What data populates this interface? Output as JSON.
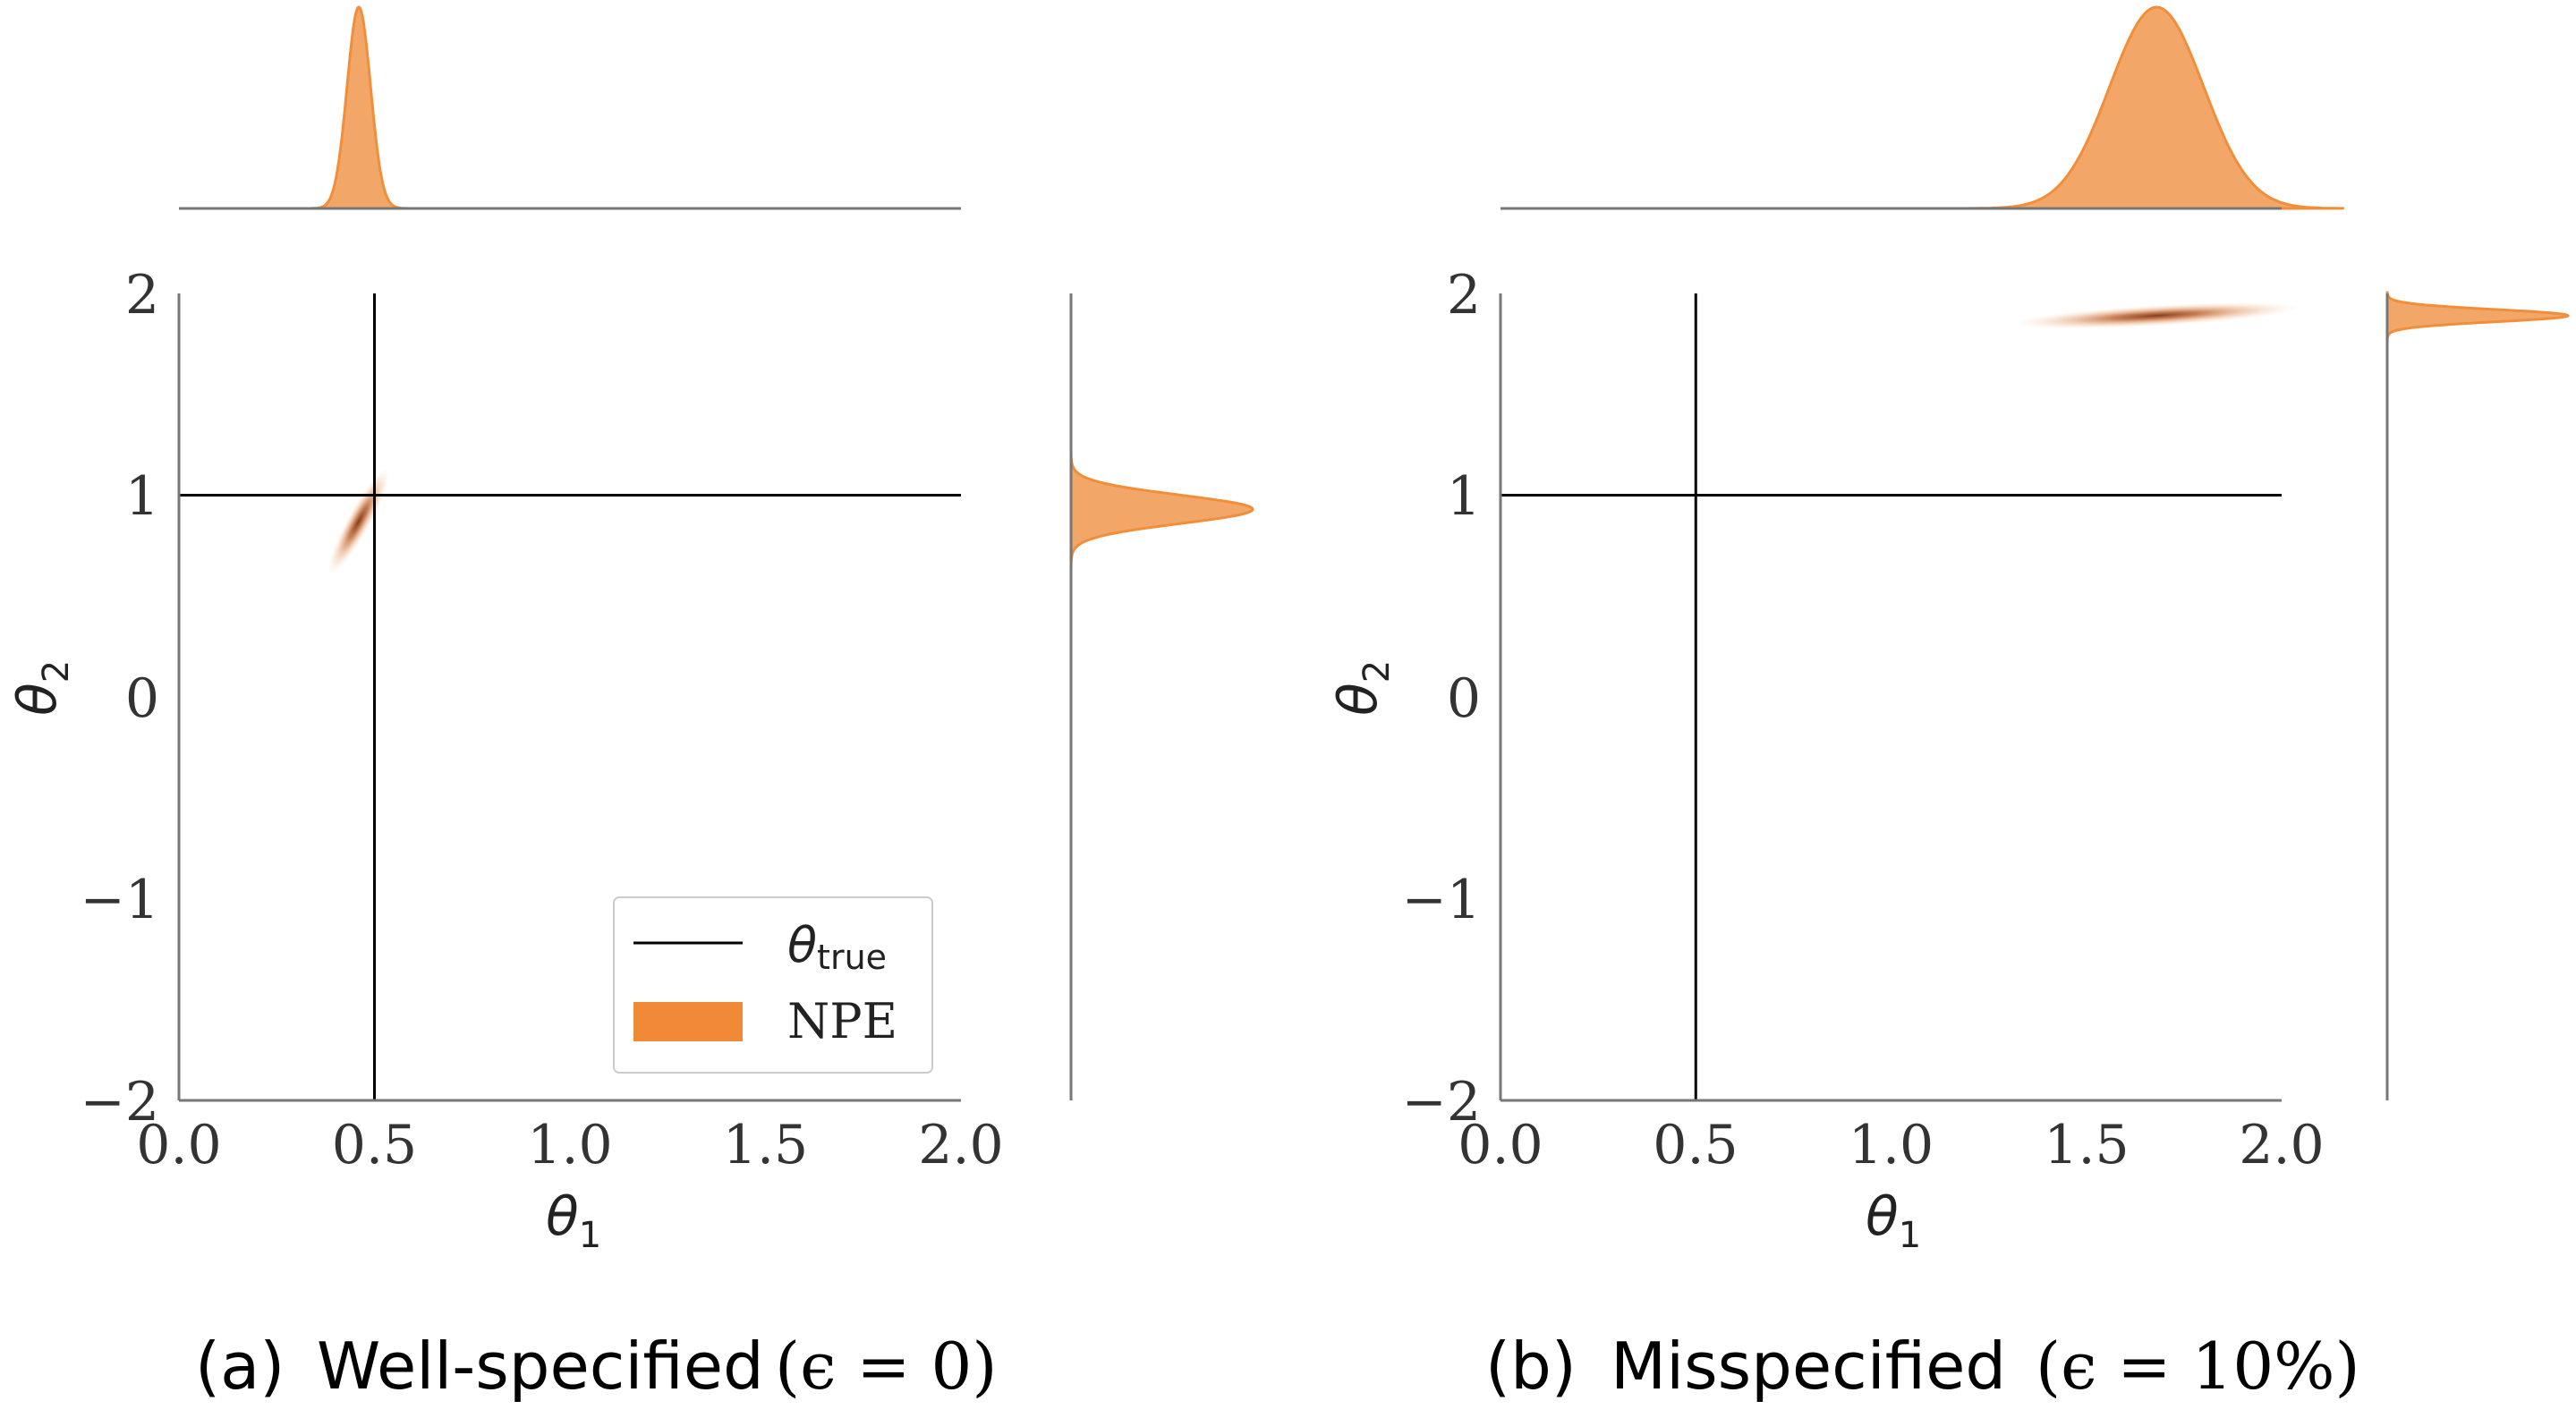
{
  "colors": {
    "npe": "#f28e3a",
    "npe_fill": "#f2a769",
    "truth_line": "#000000",
    "spine": "#777777"
  },
  "chart_data": [
    {
      "type": "scatter",
      "panel_id": "a",
      "caption": {
        "label": "(a)",
        "text": "Well-specified",
        "math": "(ϵ = 0)"
      },
      "xlabel": "θ",
      "xlabel_sub": "1",
      "ylabel": "θ",
      "ylabel_sub": "2",
      "xlim": [
        0.0,
        2.0
      ],
      "ylim": [
        -2,
        2
      ],
      "xticks": [
        "0.0",
        "0.5",
        "1.0",
        "1.5",
        "2.0"
      ],
      "xtick_values": [
        0.0,
        0.5,
        1.0,
        1.5,
        2.0
      ],
      "yticks": [
        "2",
        "1",
        "0",
        "−1",
        "−2"
      ],
      "ytick_values": [
        2,
        1,
        0,
        -1,
        -2
      ],
      "grid": false,
      "theta_true": [
        0.5,
        1.0
      ],
      "posterior_center": [
        0.46,
        0.87
      ],
      "posterior_std": [
        0.03,
        0.1
      ],
      "posterior_corr": 0.9,
      "marginal_theta1": {
        "mean": 0.46,
        "std": 0.03
      },
      "marginal_theta2": {
        "mean": 0.93,
        "std": 0.07
      },
      "legend": {
        "position": "lower-right",
        "entries": [
          {
            "label": "θ",
            "label_sub": "true",
            "kind": "line"
          },
          {
            "label": "NPE",
            "kind": "patch"
          }
        ]
      }
    },
    {
      "type": "scatter",
      "panel_id": "b",
      "caption": {
        "label": "(b)",
        "text": "Misspecified",
        "math": "(ϵ = 10%)"
      },
      "xlabel": "θ",
      "xlabel_sub": "1",
      "ylabel": "θ",
      "ylabel_sub": "2",
      "xlim": [
        0.0,
        2.0
      ],
      "ylim": [
        -2,
        2
      ],
      "xticks": [
        "0.0",
        "0.5",
        "1.0",
        "1.5",
        "2.0"
      ],
      "xtick_values": [
        0.0,
        0.5,
        1.0,
        1.5,
        2.0
      ],
      "yticks": [
        "2",
        "1",
        "0",
        "−1",
        "−2"
      ],
      "ytick_values": [
        2,
        1,
        0,
        -1,
        -2
      ],
      "grid": false,
      "theta_true": [
        0.5,
        1.0
      ],
      "posterior_center": [
        1.68,
        1.89
      ],
      "posterior_std": [
        0.14,
        0.025
      ],
      "posterior_corr": 0.6,
      "marginal_theta1": {
        "mean": 1.68,
        "std": 0.12
      },
      "marginal_theta2": {
        "mean": 1.89,
        "std": 0.03
      }
    }
  ]
}
